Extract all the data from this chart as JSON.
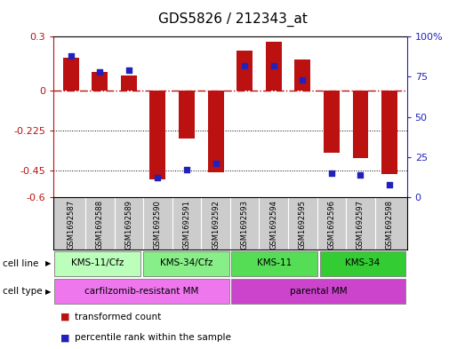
{
  "title": "GDS5826 / 212343_at",
  "samples": [
    "GSM1692587",
    "GSM1692588",
    "GSM1692589",
    "GSM1692590",
    "GSM1692591",
    "GSM1692592",
    "GSM1692593",
    "GSM1692594",
    "GSM1692595",
    "GSM1692596",
    "GSM1692597",
    "GSM1692598"
  ],
  "transformed_count": [
    0.18,
    0.1,
    0.08,
    -0.5,
    -0.27,
    -0.46,
    0.22,
    0.27,
    0.17,
    -0.35,
    -0.38,
    -0.47
  ],
  "percentile_rank": [
    88,
    78,
    79,
    12,
    17,
    21,
    82,
    82,
    73,
    15,
    14,
    8
  ],
  "ylim_left": [
    -0.6,
    0.3
  ],
  "ylim_right": [
    0,
    100
  ],
  "yticks_left": [
    0.3,
    0.0,
    -0.225,
    -0.45,
    -0.6
  ],
  "yticks_right": [
    100,
    75,
    50,
    25,
    0
  ],
  "bar_color": "#bb1111",
  "dot_color": "#2222bb",
  "cell_line_groups": [
    {
      "label": "KMS-11/Cfz",
      "start": 0,
      "end": 3,
      "color": "#bbffbb"
    },
    {
      "label": "KMS-34/Cfz",
      "start": 3,
      "end": 6,
      "color": "#88ee88"
    },
    {
      "label": "KMS-11",
      "start": 6,
      "end": 9,
      "color": "#55dd55"
    },
    {
      "label": "KMS-34",
      "start": 9,
      "end": 12,
      "color": "#33cc33"
    }
  ],
  "cell_type_groups": [
    {
      "label": "carfilzomib-resistant MM",
      "start": 0,
      "end": 6,
      "color": "#ee77ee"
    },
    {
      "label": "parental MM",
      "start": 6,
      "end": 12,
      "color": "#cc44cc"
    }
  ],
  "legend_items": [
    {
      "label": "transformed count",
      "color": "#bb1111"
    },
    {
      "label": "percentile rank within the sample",
      "color": "#2222bb"
    }
  ]
}
